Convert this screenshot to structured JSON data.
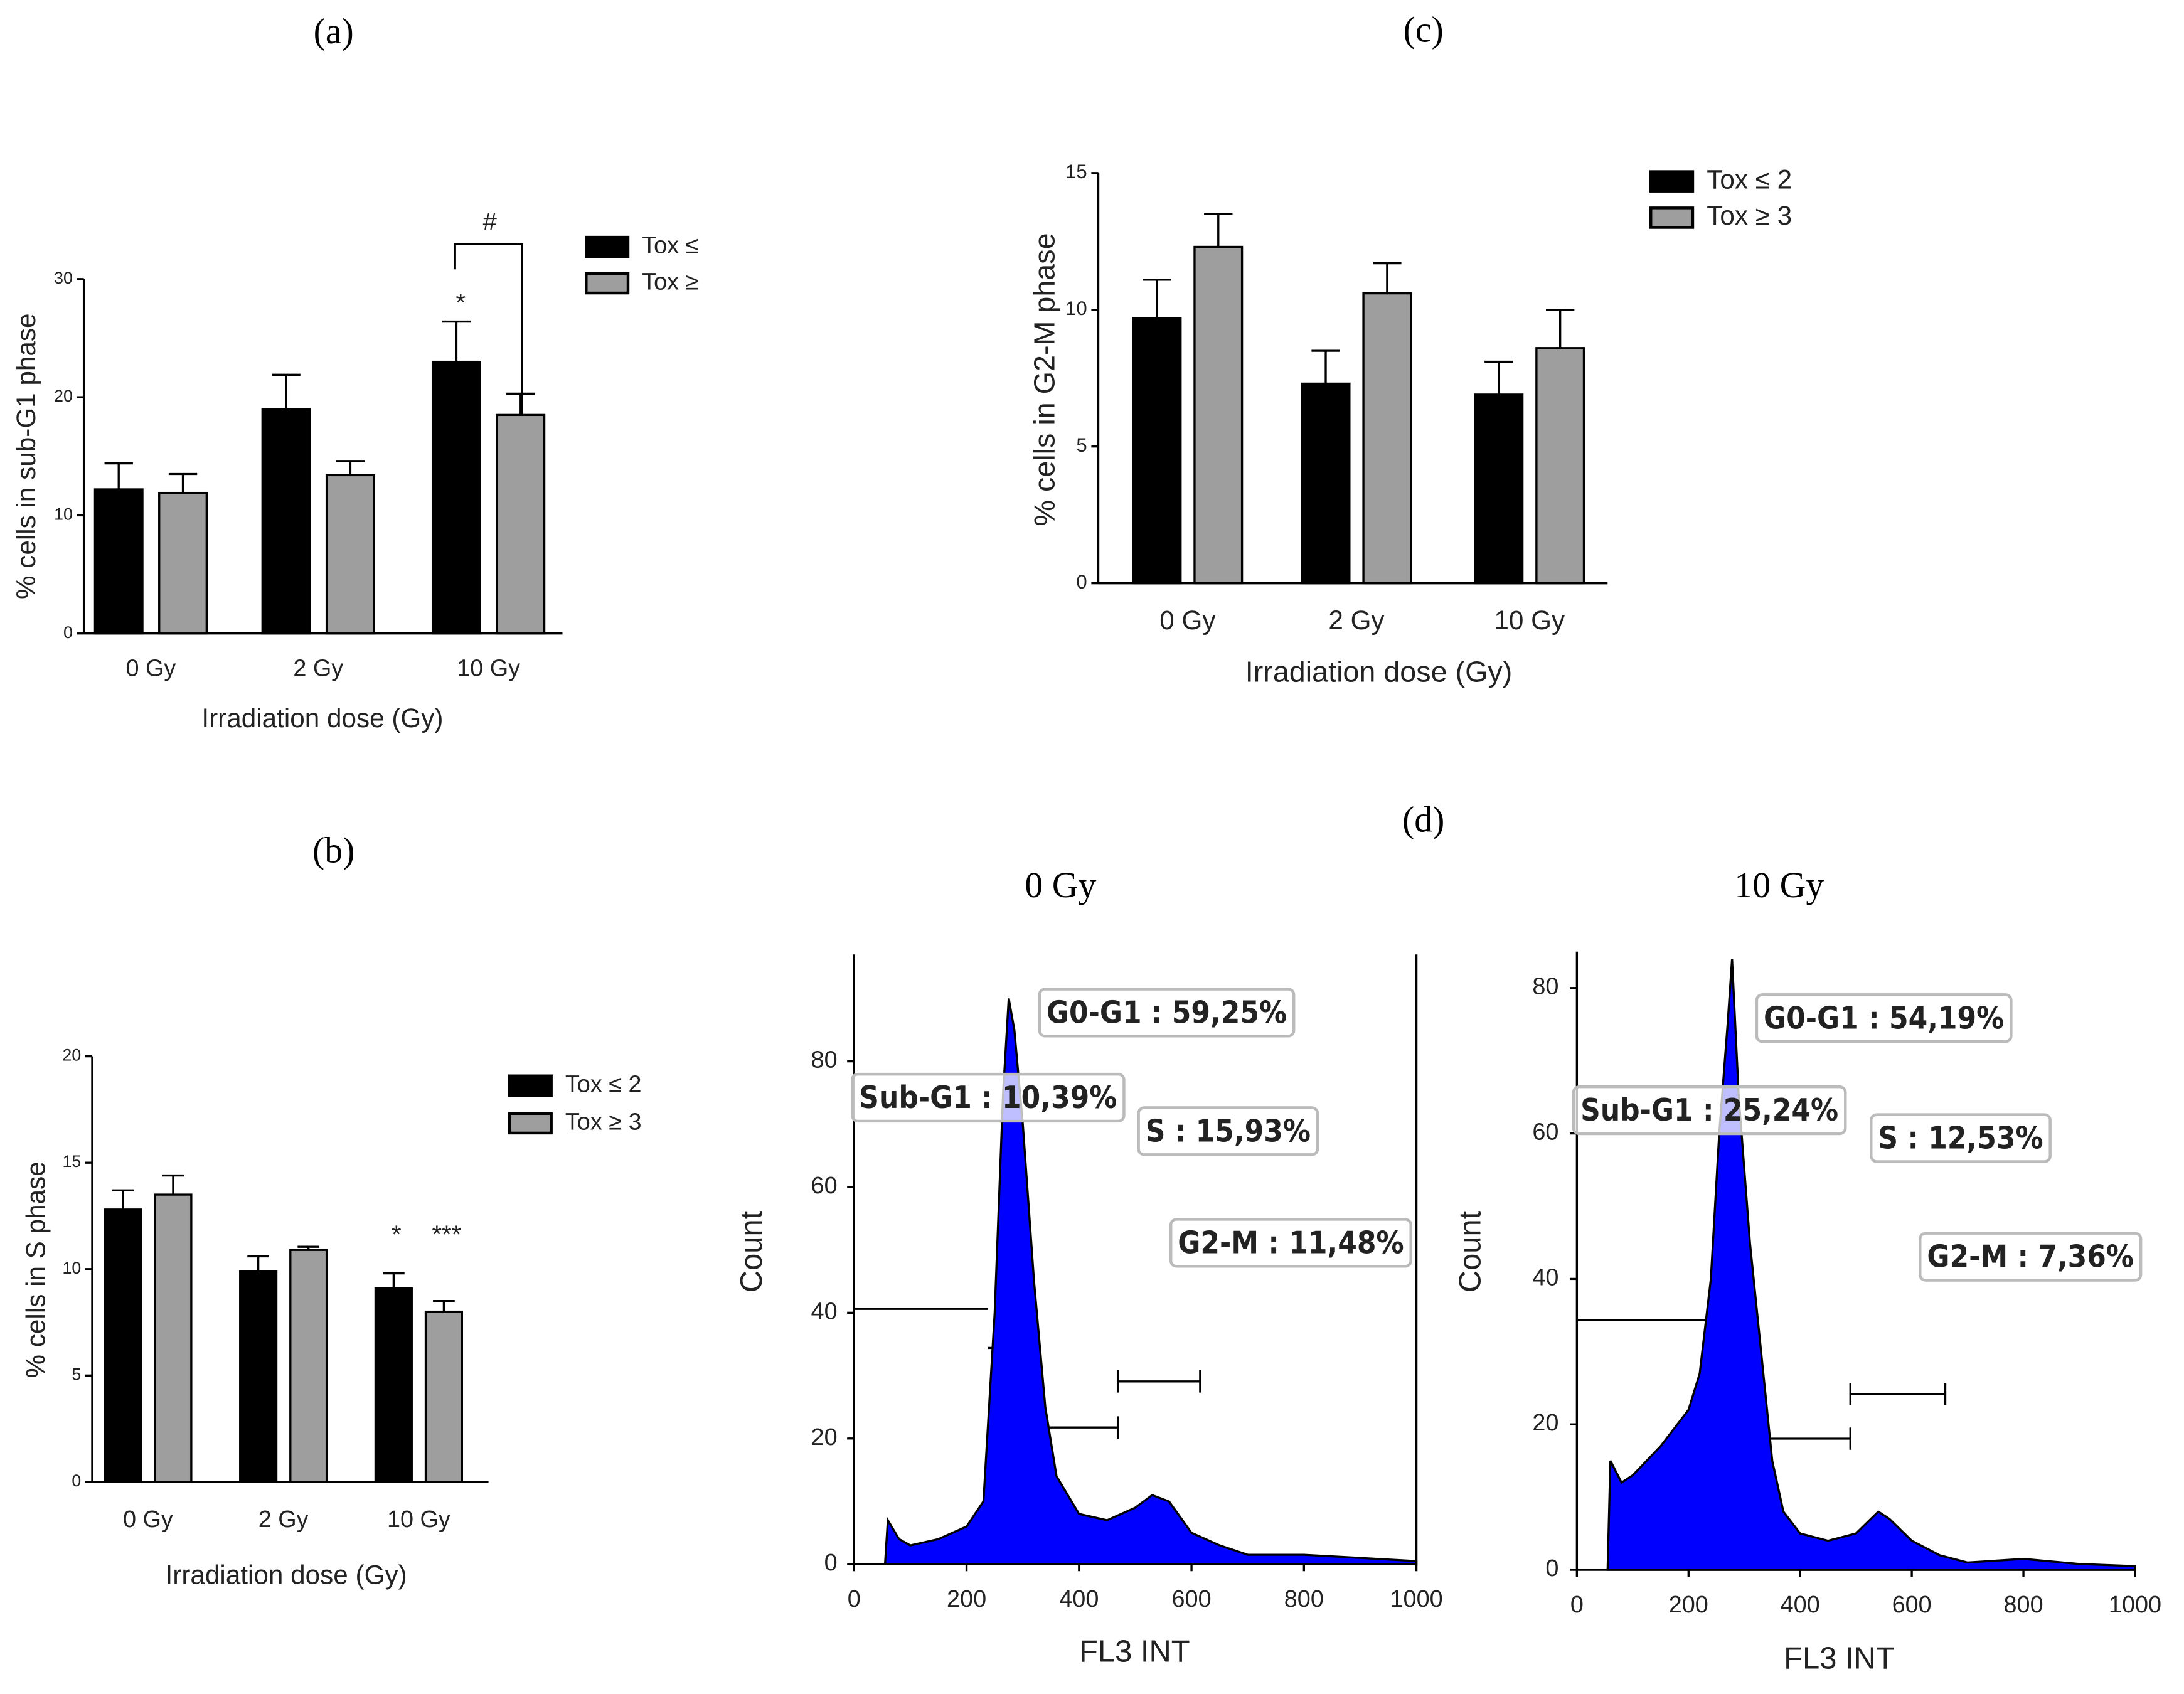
{
  "chart_data": [
    {
      "type": "bar",
      "panel": "(a)",
      "ylabel": "% cells in sub-G1 phase",
      "xlabel": "Irradiation dose (Gy)",
      "categories": [
        "0 Gy",
        "2 Gy",
        "10 Gy"
      ],
      "series": [
        {
          "name": "Tox ≤",
          "color": "#000000",
          "values": [
            12.2,
            19,
            23
          ],
          "errors": [
            2.2,
            2.9,
            3.4
          ]
        },
        {
          "name": "Tox ≥",
          "color": "#9e9e9e",
          "values": [
            11.9,
            13.4,
            18.5
          ],
          "errors": [
            1.6,
            1.2,
            1.8
          ]
        }
      ],
      "ylim": [
        0,
        30
      ],
      "yticks": [
        0,
        10,
        20,
        30
      ],
      "annotations": [
        "*",
        "#"
      ]
    },
    {
      "type": "bar",
      "panel": "(b)",
      "ylabel": "% cells in S phase",
      "xlabel": "Irradiation dose (Gy)",
      "categories": [
        "0 Gy",
        "2 Gy",
        "10 Gy"
      ],
      "series": [
        {
          "name": "Tox ≤ 2",
          "color": "#000000",
          "values": [
            12.8,
            9.9,
            9.1
          ],
          "errors": [
            0.9,
            0.7,
            0.7
          ]
        },
        {
          "name": "Tox ≥ 3",
          "color": "#9e9e9e",
          "values": [
            13.5,
            10.9,
            8.0
          ],
          "errors": [
            0.9,
            0.15,
            0.5
          ]
        }
      ],
      "ylim": [
        0,
        20
      ],
      "yticks": [
        0,
        5,
        10,
        15,
        20
      ],
      "annotations": [
        "*",
        "***"
      ]
    },
    {
      "type": "bar",
      "panel": "(c)",
      "ylabel": "% cells in G2-M phase",
      "xlabel": "Irradiation dose (Gy)",
      "categories": [
        "0 Gy",
        "2 Gy",
        "10 Gy"
      ],
      "series": [
        {
          "name": "Tox ≤ 2",
          "color": "#000000",
          "values": [
            9.7,
            7.3,
            6.9
          ],
          "errors": [
            1.4,
            1.2,
            1.2
          ]
        },
        {
          "name": "Tox ≥ 3",
          "color": "#9e9e9e",
          "values": [
            12.3,
            10.6,
            8.6
          ],
          "errors": [
            1.2,
            1.1,
            1.4
          ]
        }
      ],
      "ylim": [
        0,
        15
      ],
      "yticks": [
        0,
        5,
        10,
        15
      ]
    },
    {
      "type": "area",
      "panel": "(d)",
      "title": "0 Gy",
      "ylabel": "Count",
      "xlabel": "FL3 INT",
      "color": "#0000ff",
      "x": [
        55,
        60,
        80,
        100,
        150,
        200,
        230,
        250,
        265,
        275,
        285,
        300,
        320,
        340,
        360,
        400,
        450,
        500,
        530,
        560,
        600,
        650,
        700,
        800,
        900,
        1000
      ],
      "values": [
        0,
        7,
        4,
        3,
        4,
        6,
        10,
        40,
        75,
        90,
        85,
        70,
        45,
        25,
        14,
        8,
        7,
        9,
        11,
        10,
        5,
        3,
        1.5,
        1.5,
        1,
        0.5
      ],
      "xlim": [
        0,
        1000
      ],
      "ylim": [
        0,
        97
      ],
      "xticks": [
        0,
        200,
        400,
        600,
        800,
        1000
      ],
      "yticks": [
        0,
        20,
        40,
        60,
        80
      ],
      "annotations": [
        "G0-G1 : 59,25%",
        "Sub-G1 : 10,39%",
        "S : 15,93%",
        "G2-M : 11,48%"
      ]
    },
    {
      "type": "area",
      "title": "10 Gy",
      "ylabel": "Count",
      "xlabel": "FL3 INT",
      "color": "#0000ff",
      "x": [
        55,
        60,
        80,
        100,
        150,
        200,
        220,
        240,
        255,
        265,
        270,
        278,
        290,
        310,
        330,
        350,
        370,
        400,
        450,
        500,
        540,
        560,
        600,
        650,
        700,
        800,
        900,
        1000
      ],
      "values": [
        0,
        15,
        12,
        13,
        17,
        22,
        27,
        40,
        60,
        70,
        75,
        84,
        65,
        45,
        30,
        15,
        8,
        5,
        4,
        5,
        8,
        7,
        4,
        2,
        1,
        1.5,
        0.8,
        0.5
      ],
      "xlim": [
        0,
        1000
      ],
      "ylim": [
        0,
        85
      ],
      "xticks": [
        0,
        200,
        400,
        600,
        800,
        1000
      ],
      "yticks": [
        0,
        20,
        40,
        60,
        80
      ],
      "annotations": [
        "G0-G1 : 54,19%",
        "Sub-G1 : 25,24%",
        "S : 12,53%",
        "G2-M : 7,36%"
      ]
    }
  ]
}
